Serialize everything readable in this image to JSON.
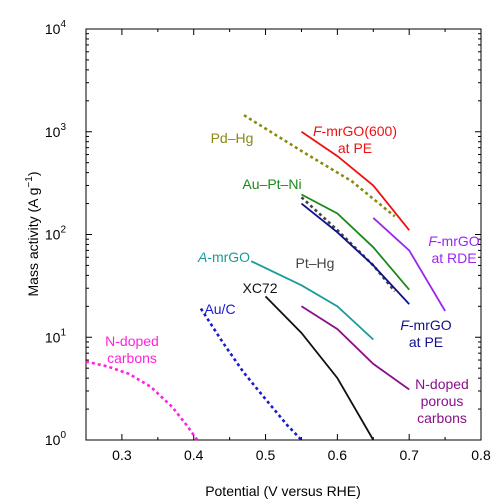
{
  "chart_data": {
    "type": "line",
    "xlabel": "Potential (V versus RHE)",
    "ylabel": {
      "main": "Mass activity (A g",
      "sup": "−1",
      "close": ")"
    },
    "xlim": [
      0.25,
      0.8
    ],
    "ylim": [
      1,
      10000
    ],
    "yscale": "log",
    "grid": false,
    "x_ticks": [
      {
        "value": 0.3,
        "label": "0.3"
      },
      {
        "value": 0.4,
        "label": "0.4"
      },
      {
        "value": 0.5,
        "label": "0.5"
      },
      {
        "value": 0.6,
        "label": "0.6"
      },
      {
        "value": 0.7,
        "label": "0.7"
      },
      {
        "value": 0.8,
        "label": "0.8"
      }
    ],
    "y_ticks": [
      {
        "value": 1,
        "base": "10",
        "exp": "0"
      },
      {
        "value": 10,
        "base": "10",
        "exp": "1"
      },
      {
        "value": 100,
        "base": "10",
        "exp": "2"
      },
      {
        "value": 1000,
        "base": "10",
        "exp": "3"
      },
      {
        "value": 10000,
        "base": "10",
        "exp": "4"
      }
    ],
    "series": [
      {
        "id": "n-doped-carbons",
        "color": "#ff22dd",
        "dash": "dotted",
        "label_lines": [
          "N-doped",
          "carbons"
        ],
        "points": [
          [
            0.25,
            5.8
          ],
          [
            0.28,
            5.2
          ],
          [
            0.31,
            4.4
          ],
          [
            0.34,
            3.3
          ],
          [
            0.37,
            2.1
          ],
          [
            0.39,
            1.4
          ],
          [
            0.405,
            1.0
          ]
        ]
      },
      {
        "id": "au-c",
        "color": "#1a1ad0",
        "dash": "dotted",
        "label_lines": [
          "Au/C"
        ],
        "points": [
          [
            0.41,
            19
          ],
          [
            0.44,
            9
          ],
          [
            0.47,
            4.5
          ],
          [
            0.5,
            2.5
          ],
          [
            0.53,
            1.4
          ],
          [
            0.55,
            1.0
          ]
        ]
      },
      {
        "id": "xc72",
        "color": "#111111",
        "dash": "solid",
        "label_lines": [
          "XC72"
        ],
        "points": [
          [
            0.5,
            25
          ],
          [
            0.55,
            11
          ],
          [
            0.6,
            4
          ],
          [
            0.65,
            1.0
          ]
        ]
      },
      {
        "id": "a-mrgo",
        "color": "#1a9b9b",
        "dash": "solid",
        "label_lines": [
          "-mrGO"
        ],
        "label_prefix": "A",
        "points": [
          [
            0.48,
            55
          ],
          [
            0.55,
            32
          ],
          [
            0.6,
            20
          ],
          [
            0.65,
            9.5
          ]
        ]
      },
      {
        "id": "pt-hg",
        "color": "#444444",
        "dash": "dotted",
        "label_lines": [
          "Pt–Hg"
        ],
        "points": [
          [
            0.55,
            230
          ],
          [
            0.6,
            110
          ],
          [
            0.65,
            50
          ],
          [
            0.68,
            28
          ]
        ]
      },
      {
        "id": "pd-hg",
        "color": "#8a8a10",
        "dash": "dotted",
        "label_lines": [
          "Pd–Hg"
        ],
        "points": [
          [
            0.47,
            1450
          ],
          [
            0.55,
            650
          ],
          [
            0.62,
            330
          ],
          [
            0.68,
            150
          ]
        ]
      },
      {
        "id": "au-pt-ni",
        "color": "#1a8a1a",
        "dash": "solid",
        "label_lines": [
          "Au–Pt–Ni"
        ],
        "points": [
          [
            0.55,
            245
          ],
          [
            0.6,
            160
          ],
          [
            0.65,
            75
          ],
          [
            0.7,
            29
          ]
        ]
      },
      {
        "id": "f-mrgo-pe",
        "color": "#10108c",
        "dash": "solid",
        "label_lines": [
          "-mrGO",
          "at PE"
        ],
        "label_prefix": "F",
        "points": [
          [
            0.55,
            200
          ],
          [
            0.6,
            105
          ],
          [
            0.65,
            50
          ],
          [
            0.7,
            21
          ]
        ]
      },
      {
        "id": "f-mrgo-rde",
        "color": "#9a28ee",
        "dash": "solid",
        "label_lines": [
          "-mrGO",
          "at RDE"
        ],
        "label_prefix": "F",
        "points": [
          [
            0.65,
            145
          ],
          [
            0.7,
            70
          ],
          [
            0.75,
            18
          ]
        ]
      },
      {
        "id": "f-mrgo-600",
        "color": "#ee1111",
        "dash": "solid",
        "label_lines": [
          "-mrGO(600)",
          "at PE"
        ],
        "label_prefix": "F",
        "points": [
          [
            0.55,
            1000
          ],
          [
            0.6,
            580
          ],
          [
            0.65,
            300
          ],
          [
            0.7,
            110
          ]
        ]
      },
      {
        "id": "n-doped-porous",
        "color": "#8a108a",
        "dash": "solid",
        "label_lines": [
          "N-doped",
          "porous",
          "carbons"
        ],
        "points": [
          [
            0.55,
            20
          ],
          [
            0.6,
            12
          ],
          [
            0.65,
            5.5
          ],
          [
            0.7,
            3.1
          ]
        ]
      }
    ]
  }
}
